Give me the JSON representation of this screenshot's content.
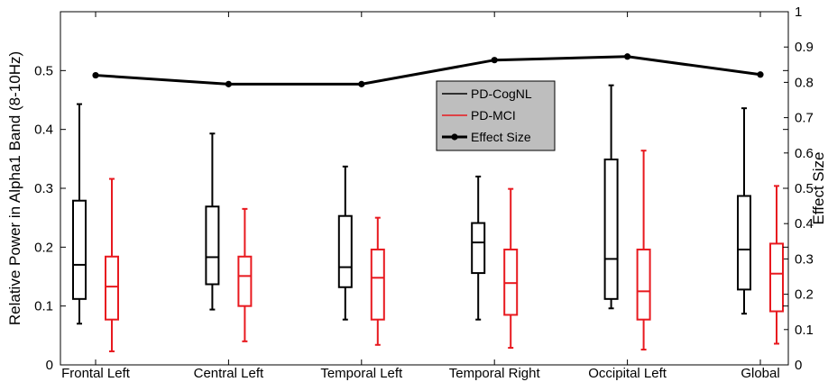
{
  "chart_data": {
    "type": "box",
    "categories": [
      "Frontal Left",
      "Central Left",
      "Temporal Left",
      "Temporal Right",
      "Occipital Left",
      "Global"
    ],
    "ylabel_left": "Relative Power in Alpha1 Band (8-10Hz)",
    "ylabel_right": "Effect Size",
    "ylim_left": [
      0,
      0.6
    ],
    "yticks_left": [
      "0",
      "0.1",
      "0.2",
      "0.3",
      "0.4",
      "0.5"
    ],
    "ylim_right": [
      0,
      1
    ],
    "yticks_right": [
      "0",
      "0.1",
      "0.2",
      "0.3",
      "0.4",
      "0.5",
      "0.6",
      "0.7",
      "0.8",
      "0.9",
      "1"
    ],
    "grid": false,
    "legend_position": "upper-center",
    "legend": [
      "PD-CogNL",
      "PD-MCI",
      "Effect Size"
    ],
    "box_series": [
      {
        "name": "PD-CogNL",
        "color": "#000000",
        "boxes": [
          {
            "min": 0.07,
            "q1": 0.112,
            "median": 0.17,
            "q3": 0.279,
            "max": 0.443
          },
          {
            "min": 0.094,
            "q1": 0.137,
            "median": 0.183,
            "q3": 0.269,
            "max": 0.393
          },
          {
            "min": 0.077,
            "q1": 0.132,
            "median": 0.166,
            "q3": 0.253,
            "max": 0.337
          },
          {
            "min": 0.077,
            "q1": 0.156,
            "median": 0.208,
            "q3": 0.241,
            "max": 0.32
          },
          {
            "min": 0.096,
            "q1": 0.112,
            "median": 0.18,
            "q3": 0.349,
            "max": 0.475
          },
          {
            "min": 0.087,
            "q1": 0.128,
            "median": 0.196,
            "q3": 0.287,
            "max": 0.436
          }
        ]
      },
      {
        "name": "PD-MCI",
        "color": "#e8191f",
        "boxes": [
          {
            "min": 0.023,
            "q1": 0.077,
            "median": 0.133,
            "q3": 0.184,
            "max": 0.316
          },
          {
            "min": 0.04,
            "q1": 0.1,
            "median": 0.151,
            "q3": 0.184,
            "max": 0.265
          },
          {
            "min": 0.034,
            "q1": 0.077,
            "median": 0.148,
            "q3": 0.196,
            "max": 0.25
          },
          {
            "min": 0.029,
            "q1": 0.085,
            "median": 0.139,
            "q3": 0.196,
            "max": 0.299
          },
          {
            "min": 0.026,
            "q1": 0.077,
            "median": 0.125,
            "q3": 0.196,
            "max": 0.364
          },
          {
            "min": 0.036,
            "q1": 0.091,
            "median": 0.155,
            "q3": 0.206,
            "max": 0.304
          }
        ]
      }
    ],
    "line_series": {
      "name": "Effect Size",
      "color": "#000000",
      "values": [
        0.82,
        0.795,
        0.795,
        0.863,
        0.873,
        0.822
      ]
    }
  }
}
